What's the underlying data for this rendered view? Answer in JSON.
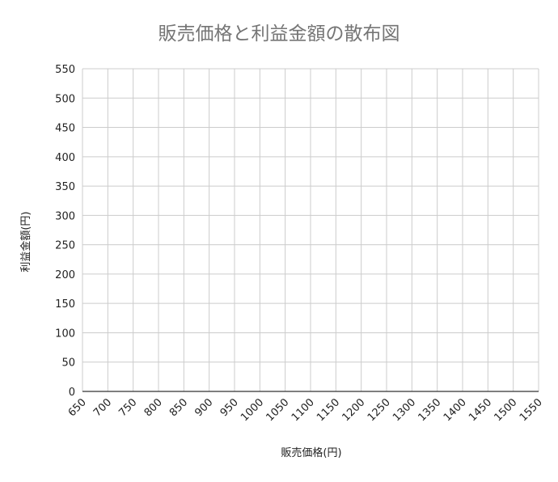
{
  "chart_data": {
    "type": "scatter",
    "title": "販売価格と利益金額の散布図",
    "xlabel": "販売価格(円)",
    "ylabel": "利益金額(円)",
    "xlim": [
      650,
      1550
    ],
    "ylim": [
      0,
      550
    ],
    "x_ticks": [
      650,
      700,
      750,
      800,
      850,
      900,
      950,
      1000,
      1050,
      1100,
      1150,
      1200,
      1250,
      1300,
      1350,
      1400,
      1450,
      1500,
      1550
    ],
    "y_ticks": [
      0,
      50,
      100,
      150,
      200,
      250,
      300,
      350,
      400,
      450,
      500,
      550
    ],
    "grid": true,
    "series": [
      {
        "x": [],
        "y": []
      }
    ],
    "colors": {
      "title": "#757575",
      "axis_text": "#222222",
      "grid": "#cccccc",
      "baseline": "#333333"
    }
  }
}
